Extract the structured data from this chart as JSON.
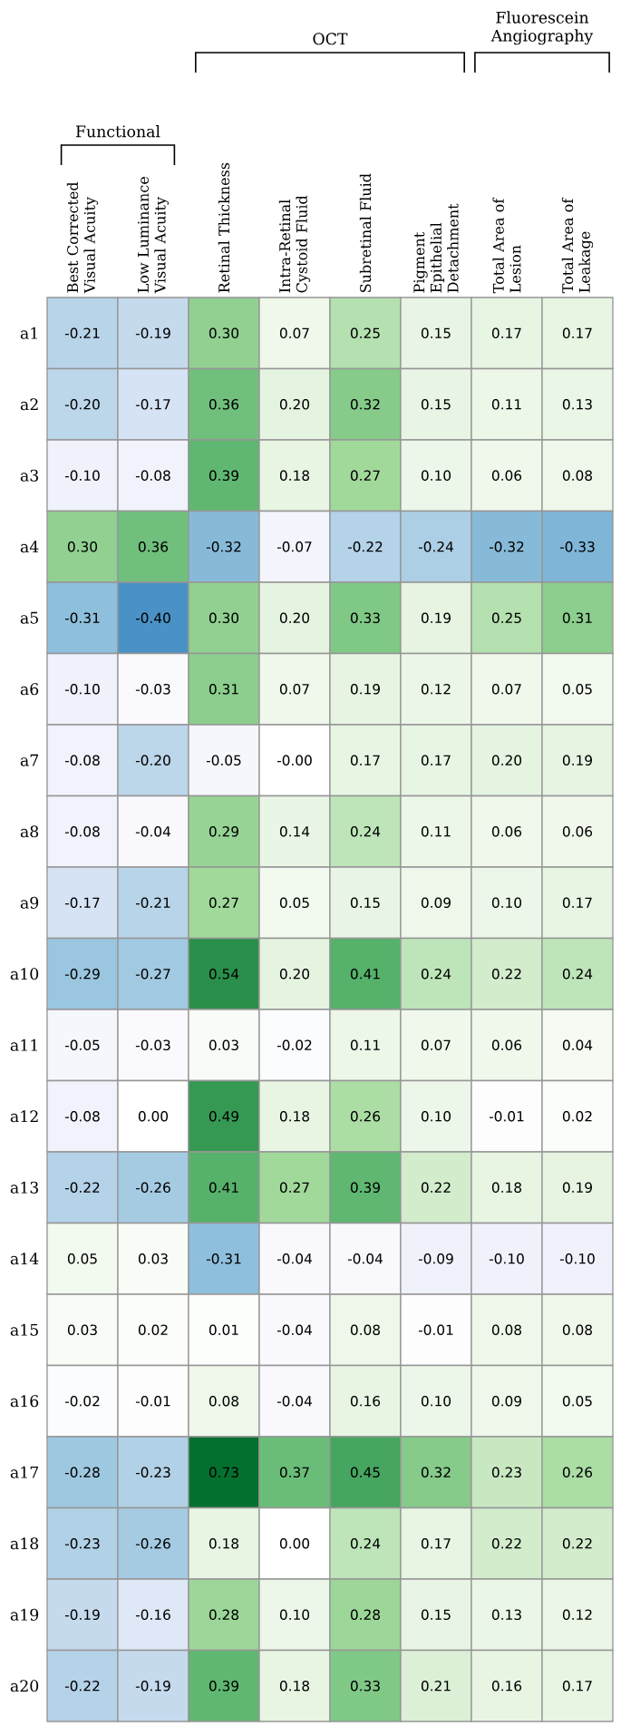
{
  "chart_data": {
    "type": "heatmap",
    "categories": [
      "Best Corrected Visual Acuity",
      "Low Luminance Visual Acuity",
      "Retinal Thickness",
      "Intra-Retinal Cystoid Fluid",
      "Subretinal Fluid",
      "Pigment Epithelial Detachment",
      "Total Area of Lesion",
      "Total Area of Leakage"
    ],
    "y_categories": [
      "a1",
      "a2",
      "a3",
      "a4",
      "a5",
      "a6",
      "a7",
      "a8",
      "a9",
      "a10",
      "a11",
      "a12",
      "a13",
      "a14",
      "a15",
      "a16",
      "a17",
      "a18",
      "a19",
      "a20"
    ],
    "annotations": [
      "Functional",
      "OCT",
      "Fluorescein Angiography"
    ],
    "cells": [
      [
        -0.21,
        -0.19,
        0.3,
        0.07,
        0.25,
        0.15,
        0.17,
        0.17
      ],
      [
        -0.2,
        -0.17,
        0.36,
        0.2,
        0.32,
        0.15,
        0.11,
        0.13
      ],
      [
        -0.1,
        -0.08,
        0.39,
        0.18,
        0.27,
        0.1,
        0.06,
        0.08
      ],
      [
        0.3,
        0.36,
        -0.32,
        -0.07,
        -0.22,
        -0.24,
        -0.32,
        -0.33
      ],
      [
        -0.31,
        -0.4,
        0.3,
        0.2,
        0.33,
        0.19,
        0.25,
        0.31
      ],
      [
        -0.1,
        -0.03,
        0.31,
        0.07,
        0.19,
        0.12,
        0.07,
        0.05
      ],
      [
        -0.08,
        -0.2,
        -0.05,
        -0.0,
        0.17,
        0.17,
        0.2,
        0.19
      ],
      [
        -0.08,
        -0.04,
        0.29,
        0.14,
        0.24,
        0.11,
        0.06,
        0.06
      ],
      [
        -0.17,
        -0.21,
        0.27,
        0.05,
        0.15,
        0.09,
        0.1,
        0.17
      ],
      [
        -0.29,
        -0.27,
        0.54,
        0.2,
        0.41,
        0.24,
        0.22,
        0.24
      ],
      [
        -0.05,
        -0.03,
        0.03,
        -0.02,
        0.11,
        0.07,
        0.06,
        0.04
      ],
      [
        -0.08,
        0.0,
        0.49,
        0.18,
        0.26,
        0.1,
        -0.01,
        0.02
      ],
      [
        -0.22,
        -0.26,
        0.41,
        0.27,
        0.39,
        0.22,
        0.18,
        0.19
      ],
      [
        0.05,
        0.03,
        -0.31,
        -0.04,
        -0.04,
        -0.09,
        -0.1,
        -0.1
      ],
      [
        0.03,
        0.02,
        0.01,
        -0.04,
        0.08,
        -0.01,
        0.08,
        0.08
      ],
      [
        -0.02,
        -0.01,
        0.08,
        -0.04,
        0.16,
        0.1,
        0.09,
        0.05
      ],
      [
        -0.28,
        -0.23,
        0.73,
        0.37,
        0.45,
        0.32,
        0.23,
        0.26
      ],
      [
        -0.23,
        -0.26,
        0.18,
        0.0,
        0.24,
        0.17,
        0.22,
        0.22
      ],
      [
        -0.19,
        -0.16,
        0.28,
        0.1,
        0.28,
        0.15,
        0.13,
        0.12
      ],
      [
        -0.22,
        -0.19,
        0.39,
        0.18,
        0.33,
        0.21,
        0.16,
        0.17
      ]
    ],
    "cell_labels": [
      [
        "-0.21",
        "-0.19",
        "0.30",
        "0.07",
        "0.25",
        "0.15",
        "0.17",
        "0.17"
      ],
      [
        "-0.20",
        "-0.17",
        "0.36",
        "0.20",
        "0.32",
        "0.15",
        "0.11",
        "0.13"
      ],
      [
        "-0.10",
        "-0.08",
        "0.39",
        "0.18",
        "0.27",
        "0.10",
        "0.06",
        "0.08"
      ],
      [
        "0.30",
        "0.36",
        "-0.32",
        "-0.07",
        "-0.22",
        "-0.24",
        "-0.32",
        "-0.33"
      ],
      [
        "-0.31",
        "-0.40",
        "0.30",
        "0.20",
        "0.33",
        "0.19",
        "0.25",
        "0.31"
      ],
      [
        "-0.10",
        "-0.03",
        "0.31",
        "0.07",
        "0.19",
        "0.12",
        "0.07",
        "0.05"
      ],
      [
        "-0.08",
        "-0.20",
        "-0.05",
        "-0.00",
        "0.17",
        "0.17",
        "0.20",
        "0.19"
      ],
      [
        "-0.08",
        "-0.04",
        "0.29",
        "0.14",
        "0.24",
        "0.11",
        "0.06",
        "0.06"
      ],
      [
        "-0.17",
        "-0.21",
        "0.27",
        "0.05",
        "0.15",
        "0.09",
        "0.10",
        "0.17"
      ],
      [
        "-0.29",
        "-0.27",
        "0.54",
        "0.20",
        "0.41",
        "0.24",
        "0.22",
        "0.24"
      ],
      [
        "-0.05",
        "-0.03",
        "0.03",
        "-0.02",
        "0.11",
        "0.07",
        "0.06",
        "0.04"
      ],
      [
        "-0.08",
        "0.00",
        "0.49",
        "0.18",
        "0.26",
        "0.10",
        "-0.01",
        "0.02"
      ],
      [
        "-0.22",
        "-0.26",
        "0.41",
        "0.27",
        "0.39",
        "0.22",
        "0.18",
        "0.19"
      ],
      [
        "0.05",
        "0.03",
        "-0.31",
        "-0.04",
        "-0.04",
        "-0.09",
        "-0.10",
        "-0.10"
      ],
      [
        "0.03",
        "0.02",
        "0.01",
        "-0.04",
        "0.08",
        "-0.01",
        "0.08",
        "0.08"
      ],
      [
        "-0.02",
        "-0.01",
        "0.08",
        "-0.04",
        "0.16",
        "0.10",
        "0.09",
        "0.05"
      ],
      [
        "-0.28",
        "-0.23",
        "0.73",
        "0.37",
        "0.45",
        "0.32",
        "0.23",
        "0.26"
      ],
      [
        "-0.23",
        "-0.26",
        "0.18",
        "0.00",
        "0.24",
        "0.17",
        "0.22",
        "0.22"
      ],
      [
        "-0.19",
        "-0.16",
        "0.28",
        "0.10",
        "0.28",
        "0.15",
        "0.13",
        "0.12"
      ],
      [
        "-0.22",
        "-0.19",
        "0.39",
        "0.18",
        "0.33",
        "0.21",
        "0.16",
        "0.17"
      ]
    ]
  }
}
